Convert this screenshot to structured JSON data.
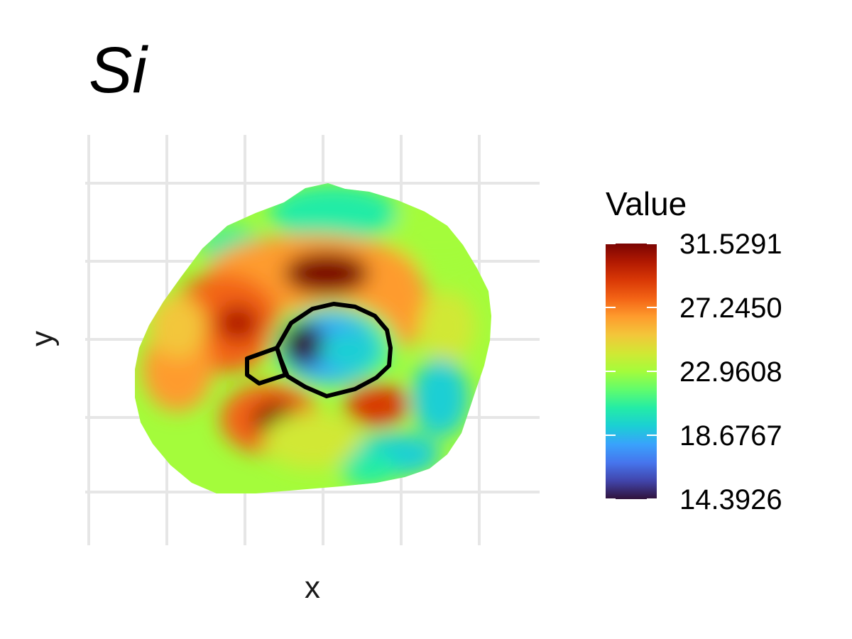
{
  "chart_data": {
    "type": "heatmap",
    "title": "Si",
    "xlabel": "x",
    "ylabel": "y",
    "grid": true,
    "legend": {
      "title": "Value",
      "placement": "right",
      "colormap": "turbo",
      "min": 14.3926,
      "max": 31.5291,
      "ticks": [
        "31.5291",
        "27.2450",
        "22.9608",
        "18.6767",
        "14.3926"
      ]
    },
    "colors": {
      "turbo_stops": [
        "#30123b",
        "#4145ab",
        "#4675ed",
        "#39a2fc",
        "#1bcfd4",
        "#24eca6",
        "#61fc6c",
        "#a4fc3b",
        "#d1e834",
        "#f3c63a",
        "#fe9b2d",
        "#f36315",
        "#d93806",
        "#b11901",
        "#7a0403"
      ],
      "grid": "#e6e6e6",
      "boundary": "#000000"
    }
  }
}
